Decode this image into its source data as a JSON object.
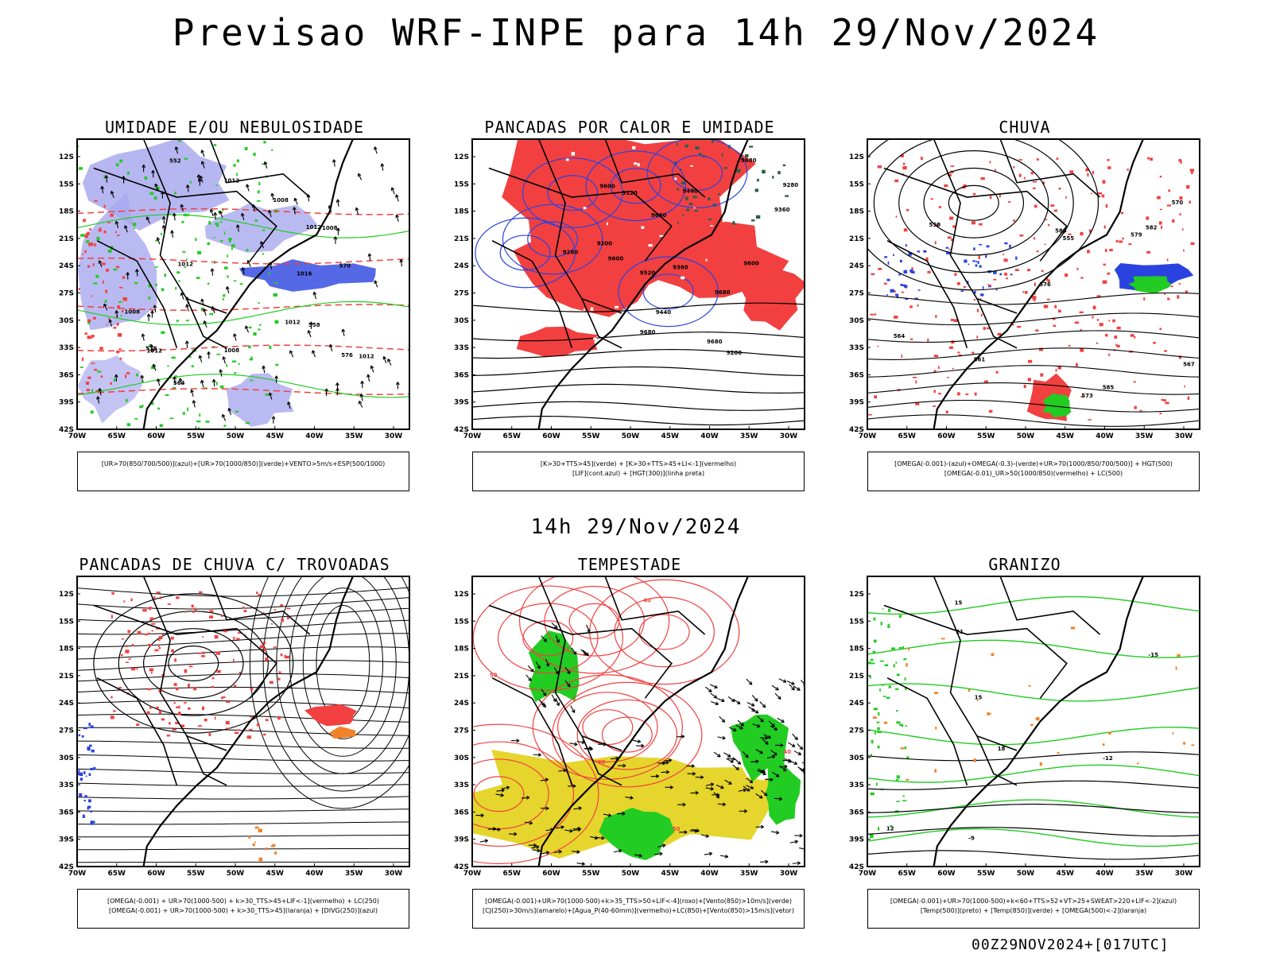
{
  "title": "Previsao WRF-INPE  para 14h 29/Nov/2024",
  "subtitle": "14h 29/Nov/2024",
  "footer": "00Z29NOV2024+[017UTC]",
  "lat_labels": [
    "12S",
    "15S",
    "18S",
    "21S",
    "24S",
    "27S",
    "30S",
    "33S",
    "36S",
    "39S",
    "42S"
  ],
  "lon_labels": [
    "70W",
    "65W",
    "60W",
    "55W",
    "50W",
    "45W",
    "40W",
    "35W",
    "30W"
  ],
  "panels": [
    {
      "title": "UMIDADE E/OU NEBULOSIDADE",
      "legend": [
        "[UR>70(850/700/500)](azul)+[UR>70(1000/850)](verde)+VENTO>5m/s+ESP(500/1000)"
      ],
      "labels": [
        "1012",
        "1008",
        "1012",
        "1012",
        "1016",
        "1008",
        "1012",
        "1008",
        "1012",
        "1012",
        "1008",
        "576",
        "570",
        "576",
        "564",
        "558",
        "552"
      ]
    },
    {
      "title": "PANCADAS POR CALOR E UMIDADE",
      "legend": [
        "[K>30+TTS>45](verde) + [K>30+TTS>45+LI<-1](vermelho)",
        "[LIF](cont.azul) + [HGT(300)](linha preta)"
      ],
      "labels": [
        "9680",
        "9680",
        "9680",
        "9680",
        "9600",
        "9600",
        "9680",
        "9600",
        "9520",
        "9440",
        "9360",
        "9280",
        "9200",
        "9440",
        "9360",
        "9280",
        "9200",
        "9120"
      ]
    },
    {
      "title": "CHUVA",
      "legend": [
        "[OMEGA(-0.001)-(azul)+OMEGA(-0.3)-(verde)+UR>70(1000/850/700/500)] + HGT(500)",
        "[OMEGA(-0.01)_UR>50(1000/850)(vermelho) + LC(500)"
      ],
      "labels": [
        "585",
        "588",
        "582",
        "579",
        "576",
        "573",
        "570",
        "567",
        "564",
        "561",
        "558",
        "555"
      ]
    },
    {
      "title": "PANCADAS DE CHUVA C/ TROVOADAS",
      "legend": [
        "[OMEGA(-0.001) + UR>70(1000-500) + k>30_TTS>45+LIF<-1](vermelho) + LC(250)",
        "[OMEGA(-0.001) + UR>70(1000-500) + k>30_TTS>45](laranja) + [DIVG(250)](azul)"
      ],
      "labels": []
    },
    {
      "title": "TEMPESTADE",
      "legend": [
        "[OMEGA(-0.001)+UR>70(1000-500)+k>35_TTS>50+LIF<-4](roxo)+[Vento(850)>10m/s](verde)",
        "[CJ(250)>30m/s](amarelo)+[Agua_P(40-60mm)](vermelho)+LC(850)+[Vento(850)>15m/s](vetor)"
      ],
      "labels": [
        "50",
        "50",
        "40",
        "40",
        "40"
      ]
    },
    {
      "title": "GRANIZO",
      "legend": [
        "[OMEGA(-0.001)+UR>70(1000-500)+k<60+TTS>52+VT>25+SWEAT>220+LIF<-2](azul)",
        "[Temp(500)](preto) + [Temp(850)](verde) + [OMEGA(500)<-2](laranja)"
      ],
      "labels": [
        "15",
        "12",
        "-15",
        "21",
        "18",
        "15",
        "-9",
        "-12"
      ]
    }
  ],
  "colors": {
    "red": "#f24040",
    "green": "#22cc22",
    "blue": "#2a43e0",
    "lavender": "#a9a9ef",
    "orange": "#f0822a",
    "yellow": "#e5d52c",
    "darkgreen": "#2e5e4a"
  }
}
